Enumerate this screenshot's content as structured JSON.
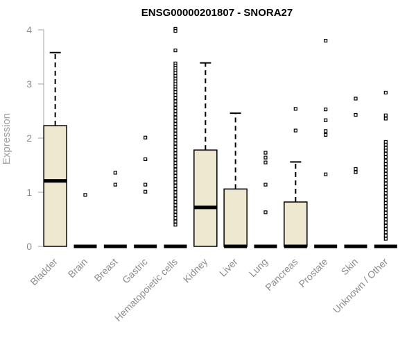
{
  "chart_data": {
    "type": "boxplot",
    "title": "ENSG00000201807 - SNORA27",
    "xlabel": "",
    "ylabel": "Expression",
    "ylim": [
      0,
      4
    ],
    "yticks": [
      0,
      1,
      2,
      3,
      4
    ],
    "grid": false,
    "legend": "none",
    "colors": {
      "box_fill": "#ede8cf",
      "box_stroke": "#000000",
      "axis": "#a0a0a0"
    },
    "categories": [
      "Bladder",
      "Brain",
      "Breast",
      "Gastric",
      "Hematopoietic cells",
      "Kidney",
      "Liver",
      "Lung",
      "Pancreas",
      "Prostate",
      "Skin",
      "Unknown / Other"
    ],
    "boxes": [
      {
        "category": "Bladder",
        "min": 0,
        "q1": 0,
        "median": 1.21,
        "q3": 2.23,
        "max": 3.58,
        "outliers": []
      },
      {
        "category": "Brain",
        "min": 0,
        "q1": 0,
        "median": 0,
        "q3": 0,
        "max": 0,
        "outliers": [
          0.95
        ]
      },
      {
        "category": "Breast",
        "min": 0,
        "q1": 0,
        "median": 0,
        "q3": 0,
        "max": 0,
        "outliers": [
          1.36,
          1.14
        ]
      },
      {
        "category": "Gastric",
        "min": 0,
        "q1": 0,
        "median": 0,
        "q3": 0,
        "max": 0,
        "outliers": [
          2.01,
          1.61,
          1.14,
          1.01
        ]
      },
      {
        "category": "Hematopoietic cells",
        "min": 0,
        "q1": 0,
        "median": 0,
        "q3": 0,
        "max": 0,
        "outliers": [
          4.02,
          3.98,
          3.62,
          3.38,
          3.34,
          3.3,
          3.25,
          3.2,
          3.15,
          3.1,
          3.05,
          3.0,
          2.95,
          2.9,
          2.85,
          2.8,
          2.74,
          2.68,
          2.62,
          2.56,
          2.5,
          2.44,
          2.38,
          2.32,
          2.26,
          2.2,
          2.14,
          2.08,
          2.02,
          1.96,
          1.9,
          1.84,
          1.78,
          1.72,
          1.66,
          1.6,
          1.54,
          1.48,
          1.42,
          1.36,
          1.3,
          1.24,
          1.18,
          1.12,
          1.06,
          1.0,
          0.94,
          0.88,
          0.82,
          0.76,
          0.7,
          0.64,
          0.58,
          0.52,
          0.46,
          0.4
        ]
      },
      {
        "category": "Kidney",
        "min": 0,
        "q1": 0,
        "median": 0.72,
        "q3": 1.78,
        "max": 3.39,
        "outliers": []
      },
      {
        "category": "Liver",
        "min": 0,
        "q1": 0,
        "median": 0,
        "q3": 1.06,
        "max": 2.46,
        "outliers": []
      },
      {
        "category": "Lung",
        "min": 0,
        "q1": 0,
        "median": 0,
        "q3": 0,
        "max": 0,
        "outliers": [
          1.73,
          1.64,
          1.55,
          1.14,
          0.63
        ]
      },
      {
        "category": "Pancreas",
        "min": 0,
        "q1": 0,
        "median": 0,
        "q3": 0.82,
        "max": 1.56,
        "outliers": [
          2.54,
          2.14
        ]
      },
      {
        "category": "Prostate",
        "min": 0,
        "q1": 0,
        "median": 0,
        "q3": 0,
        "max": 0,
        "outliers": [
          3.8,
          2.53,
          2.33,
          2.13,
          2.06,
          1.33
        ]
      },
      {
        "category": "Skin",
        "min": 0,
        "q1": 0,
        "median": 0,
        "q3": 0,
        "max": 0,
        "outliers": [
          2.73,
          2.43,
          1.43,
          1.37
        ]
      },
      {
        "category": "Unknown / Other",
        "min": 0,
        "q1": 0,
        "median": 0,
        "q3": 0,
        "max": 0,
        "outliers": [
          2.84,
          2.42,
          2.36,
          1.93,
          1.88,
          1.82,
          1.77,
          1.71,
          1.65,
          1.58,
          1.52,
          1.46,
          1.4,
          1.34,
          1.28,
          1.22,
          1.16,
          1.1,
          1.04,
          0.98,
          0.92,
          0.86,
          0.8,
          0.74,
          0.68,
          0.62,
          0.56,
          0.5,
          0.44,
          0.38,
          0.32,
          0.26,
          0.2,
          0.14
        ]
      }
    ]
  }
}
